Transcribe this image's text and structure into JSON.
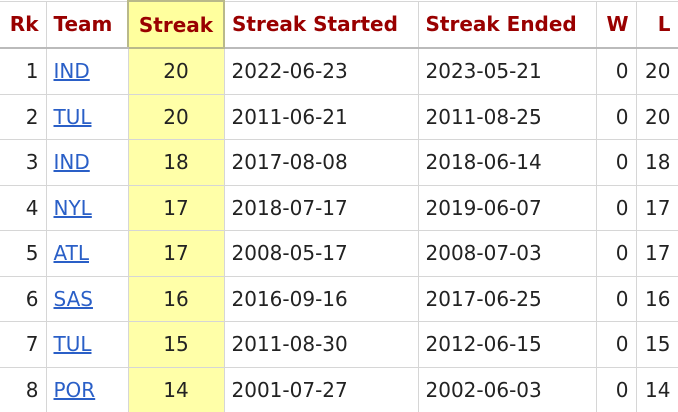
{
  "table": {
    "header": [
      "Rk",
      "Team",
      "Streak",
      "Streak Started",
      "Streak Ended",
      "W",
      "L"
    ],
    "rows": [
      [
        1,
        "IND",
        20,
        "2022-06-23",
        "2023-05-21",
        0,
        20
      ],
      [
        2,
        "TUL",
        20,
        "2011-06-21",
        "2011-08-25",
        0,
        20
      ],
      [
        3,
        "IND",
        18,
        "2017-08-08",
        "2018-06-14",
        0,
        18
      ],
      [
        4,
        "NYL",
        17,
        "2018-07-17",
        "2019-06-07",
        0,
        17
      ],
      [
        5,
        "ATL",
        17,
        "2008-05-17",
        "2008-07-03",
        0,
        17
      ],
      [
        6,
        "SAS",
        16,
        "2016-09-16",
        "2017-06-25",
        0,
        16
      ],
      [
        7,
        "TUL",
        15,
        "2011-08-30",
        "2012-06-15",
        0,
        15
      ],
      [
        8,
        "POR",
        14,
        "2001-07-27",
        "2002-06-03",
        0,
        14
      ]
    ]
  }
}
